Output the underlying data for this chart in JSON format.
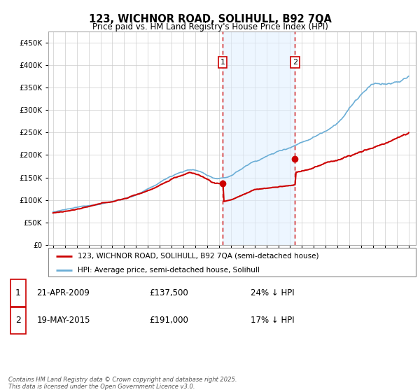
{
  "title_line1": "123, WICHNOR ROAD, SOLIHULL, B92 7QA",
  "title_line2": "Price paid vs. HM Land Registry's House Price Index (HPI)",
  "purchase1_date": "21-APR-2009",
  "purchase1_price": 137500,
  "purchase1_year": 2009.3,
  "purchase1_hpi": "24% ↓ HPI",
  "purchase2_date": "19-MAY-2015",
  "purchase2_price": 191000,
  "purchase2_year": 2015.4,
  "purchase2_hpi": "17% ↓ HPI",
  "legend_property": "123, WICHNOR ROAD, SOLIHULL, B92 7QA (semi-detached house)",
  "legend_hpi": "HPI: Average price, semi-detached house, Solihull",
  "footer": "Contains HM Land Registry data © Crown copyright and database right 2025.\nThis data is licensed under the Open Government Licence v3.0.",
  "property_color": "#cc0000",
  "hpi_color": "#6baed6",
  "hpi_fill_color": "#ddeeff",
  "vline_color": "#cc0000",
  "background_color": "#ffffff",
  "plot_bg_color": "#ffffff",
  "grid_color": "#cccccc",
  "ylim": [
    0,
    475000
  ],
  "yticks": [
    0,
    50000,
    100000,
    150000,
    200000,
    250000,
    300000,
    350000,
    400000,
    450000
  ],
  "year_start": 1995,
  "year_end": 2025
}
